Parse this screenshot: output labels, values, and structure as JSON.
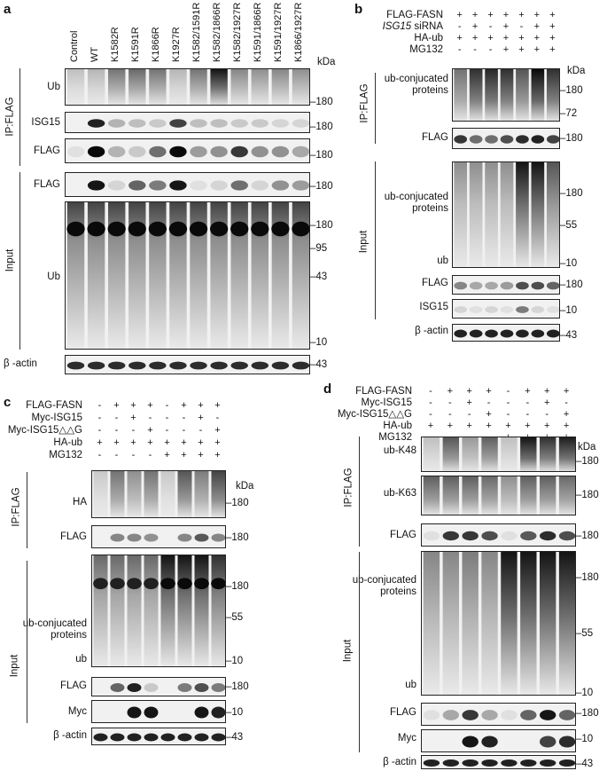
{
  "panels": {
    "a": "a",
    "b": "b",
    "c": "c",
    "d": "d"
  },
  "kda": "kDa",
  "a": {
    "columns": [
      "Control",
      "WT",
      "K1582R",
      "K1591R",
      "K1866R",
      "K1927R",
      "K1582/1591R",
      "K1582/1866R",
      "K1582/1927R",
      "K1591/1866R",
      "K1591/1927R",
      "K1866/1927R"
    ],
    "group_ip": "IP:FLAG",
    "group_input": "Input",
    "rows": {
      "ub": "Ub",
      "isg15": "ISG15",
      "flag": "FLAG",
      "flag_in": "FLAG",
      "ub_in": "Ub",
      "actin": "β -actin"
    },
    "mw": {
      "ub": "180",
      "isg15": "180",
      "flag": "180",
      "flag_in": "180",
      "in180": "180",
      "in95": "95",
      "in43": "43",
      "in10": "10",
      "actin": "43"
    }
  },
  "b": {
    "conditions": [
      {
        "label": "FLAG-FASN",
        "marks": [
          "+",
          "+",
          "+",
          "+",
          "+",
          "+",
          "+"
        ]
      },
      {
        "label": "siRNA",
        "italic": "ISG15",
        "marks": [
          "-",
          "+",
          "-",
          "+",
          "-",
          "+",
          "+"
        ]
      },
      {
        "label": "HA-ub",
        "marks": [
          "+",
          "+",
          "+",
          "+",
          "+",
          "+",
          "+"
        ]
      },
      {
        "label": "MG132",
        "marks": [
          "-",
          "-",
          "-",
          "+",
          "+",
          "+",
          "+"
        ]
      }
    ],
    "group_ip": "IP:FLAG",
    "group_input": "Input",
    "rows": {
      "ubconj": "ub-conjucated proteins",
      "flag": "FLAG",
      "ubconj_in": "ub-conjucated proteins",
      "ub": "ub",
      "flag_in": "FLAG",
      "isg15": "ISG15",
      "actin": "β -actin"
    },
    "mw": {
      "ip180": "180",
      "ip72": "72",
      "flag": "180",
      "in180": "180",
      "in55": "55",
      "in10": "10",
      "flag_in": "180",
      "isg15": "10",
      "actin": "43"
    }
  },
  "c": {
    "conditions": [
      {
        "label": "FLAG-FASN",
        "marks": [
          "-",
          "+",
          "+",
          "+",
          "-",
          "+",
          "+",
          "+"
        ]
      },
      {
        "label": "Myc-ISG15",
        "marks": [
          "-",
          "-",
          "+",
          "-",
          "-",
          "-",
          "+",
          "-"
        ]
      },
      {
        "label": "Myc-ISG15△△G",
        "marks": [
          "-",
          "-",
          "-",
          "+",
          "-",
          "-",
          "-",
          "+"
        ]
      },
      {
        "label": "HA-ub",
        "marks": [
          "+",
          "+",
          "+",
          "+",
          "+",
          "+",
          "+",
          "+"
        ]
      },
      {
        "label": "MG132",
        "marks": [
          "-",
          "-",
          "-",
          "-",
          "+",
          "+",
          "+",
          "+"
        ]
      }
    ],
    "group_ip": "IP:FLAG",
    "group_input": "Input",
    "rows": {
      "ha": "HA",
      "flag": "FLAG",
      "ubconj": "ub-conjucated proteins",
      "ub": "ub",
      "flag_in": "FLAG",
      "myc": "Myc",
      "actin": "β -actin"
    },
    "mw": {
      "ha": "180",
      "flag": "180",
      "in180": "180",
      "in55": "55",
      "in10": "10",
      "flag_in": "180",
      "myc": "10",
      "actin": "43"
    }
  },
  "d": {
    "conditions": [
      {
        "label": "FLAG-FASN",
        "marks": [
          "-",
          "+",
          "+",
          "+",
          "-",
          "+",
          "+",
          "+"
        ]
      },
      {
        "label": "Myc-ISG15",
        "marks": [
          "-",
          "-",
          "+",
          "-",
          "-",
          "-",
          "+",
          "-"
        ]
      },
      {
        "label": "Myc-ISG15△△G",
        "marks": [
          "-",
          "-",
          "-",
          "+",
          "-",
          "-",
          "-",
          "+"
        ]
      },
      {
        "label": "HA-ub",
        "marks": [
          "+",
          "+",
          "+",
          "+",
          "+",
          "+",
          "+",
          "+"
        ]
      },
      {
        "label": "MG132",
        "marks": [
          "-",
          "-",
          "-",
          "-",
          "+",
          "+",
          "+",
          "+"
        ]
      }
    ],
    "group_ip": "IP:FLAG",
    "group_input": "Input",
    "rows": {
      "k48": "ub-K48",
      "k63": "ub-K63",
      "flag": "FLAG",
      "ubconj": "ub-conjucated proteins",
      "ub": "ub",
      "flag_in": "FLAG",
      "myc": "Myc",
      "actin": "β -actin"
    },
    "mw": {
      "k48": "180",
      "k63": "180",
      "flag": "180",
      "in180": "180",
      "in55": "55",
      "in10": "10",
      "flag_in": "180",
      "myc": "10",
      "actin": "43"
    }
  },
  "intensities": {
    "a_ub": [
      0.05,
      0.1,
      0.45,
      0.5,
      0.45,
      0.1,
      0.45,
      0.95,
      0.35,
      0.3,
      0.35,
      0.3
    ],
    "a_isg15": [
      0,
      0.9,
      0.25,
      0.2,
      0.15,
      0.75,
      0.2,
      0.2,
      0.15,
      0.15,
      0.1,
      0.1
    ],
    "a_flag": [
      0.05,
      1,
      0.25,
      0.15,
      0.55,
      1,
      0.35,
      0.4,
      0.8,
      0.4,
      0.4,
      0.3
    ],
    "a_flag_in": [
      0,
      0.95,
      0.1,
      0.6,
      0.5,
      0.95,
      0.05,
      0.1,
      0.55,
      0.1,
      0.4,
      0.35
    ],
    "a_actin": [
      0.85,
      0.85,
      0.85,
      0.85,
      0.85,
      0.85,
      0.85,
      0.85,
      0.85,
      0.85,
      0.85,
      0.85
    ],
    "b_ip": [
      0.45,
      0.8,
      0.85,
      0.8,
      0.6,
      1,
      0.8
    ],
    "b_flag": [
      0.8,
      0.55,
      0.55,
      0.7,
      0.85,
      0.9,
      0.75
    ],
    "b_in": [
      0.3,
      0.3,
      0.3,
      0.3,
      0.95,
      0.95,
      0.6
    ],
    "b_flag_in": [
      0.45,
      0.3,
      0.3,
      0.35,
      0.7,
      0.7,
      0.6
    ],
    "b_isg15": [
      0.1,
      0.05,
      0.1,
      0.05,
      0.5,
      0.1,
      0.05
    ],
    "b_actin": [
      0.9,
      0.9,
      0.9,
      0.9,
      0.9,
      0.9,
      0.9
    ],
    "c_ha": [
      0,
      0.45,
      0.3,
      0.45,
      0,
      0.6,
      0.4,
      0.7
    ],
    "c_flag": [
      0,
      0.45,
      0.45,
      0.4,
      0,
      0.45,
      0.65,
      0.45
    ],
    "c_in": [
      0.5,
      0.5,
      0.5,
      0.5,
      0.95,
      0.95,
      0.95,
      0.8
    ],
    "c_flag_in": [
      0,
      0.6,
      0.9,
      0.15,
      0,
      0.5,
      0.7,
      0.5
    ],
    "c_myc": [
      0,
      0,
      0.95,
      0.95,
      0,
      0,
      0.95,
      0.9
    ],
    "c_actin": [
      0.9,
      0.9,
      0.9,
      0.9,
      0.9,
      0.9,
      0.9,
      0.9
    ],
    "d_k48": [
      0.05,
      0.6,
      0.25,
      0.55,
      0.05,
      0.95,
      0.8,
      0.9
    ],
    "d_k63": [
      0.55,
      0.55,
      0.55,
      0.5,
      0.3,
      0.55,
      0.55,
      0.5
    ],
    "d_flag": [
      0.05,
      0.8,
      0.8,
      0.7,
      0.05,
      0.65,
      0.85,
      0.7
    ],
    "d_in": [
      0.35,
      0.35,
      0.4,
      0.35,
      0.95,
      0.95,
      0.95,
      0.95
    ],
    "d_flag_in": [
      0.05,
      0.3,
      0.8,
      0.3,
      0.05,
      0.6,
      0.95,
      0.6
    ],
    "d_myc": [
      0,
      0,
      0.95,
      0.9,
      0,
      0,
      0.75,
      0.85
    ],
    "d_actin": [
      0.9,
      0.9,
      0.9,
      0.9,
      0.9,
      0.9,
      0.9,
      0.9
    ]
  }
}
